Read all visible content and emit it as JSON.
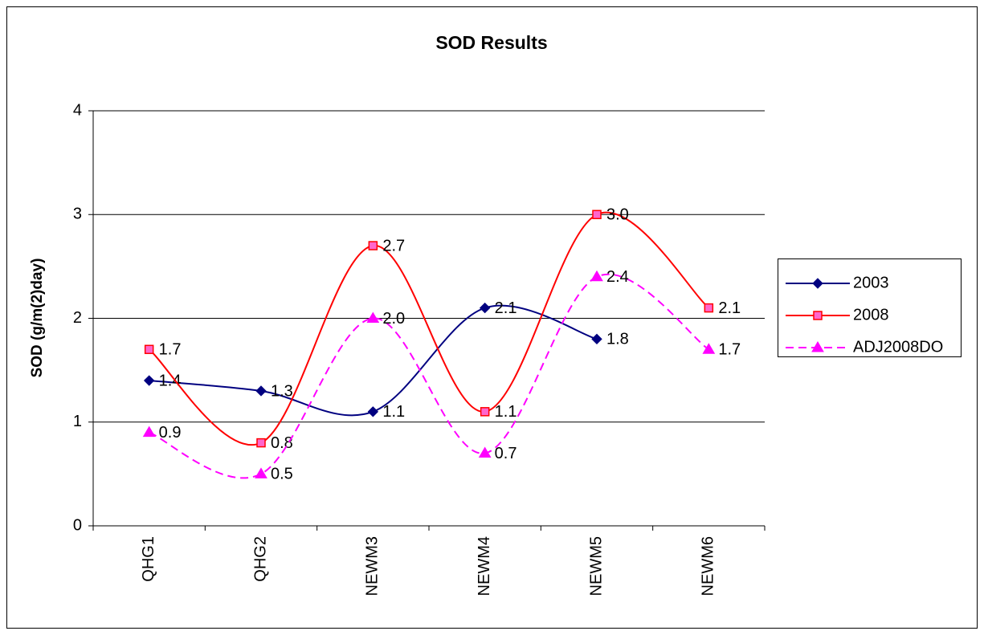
{
  "chart_data": {
    "type": "line",
    "title": "SOD Results",
    "y_label": "SOD (g/m(2)day)",
    "categories": [
      "QHG1",
      "QHG2",
      "NEWM3",
      "NEWM4",
      "NEWM5",
      "NEWM6"
    ],
    "series": [
      {
        "name": "2003",
        "color": "#000080",
        "marker": "diamond",
        "marker_fill": "#000080",
        "dashed": false,
        "values": [
          1.4,
          1.3,
          1.1,
          2.1,
          1.8,
          null
        ],
        "value_labels": [
          "1.4",
          "1.3",
          "1.1",
          "2.1",
          "1.8",
          null
        ]
      },
      {
        "name": "2008",
        "color": "#ff0000",
        "marker": "square",
        "marker_fill": "#ff66cc",
        "dashed": false,
        "values": [
          1.7,
          0.8,
          2.7,
          1.1,
          3.0,
          2.1
        ],
        "value_labels": [
          "1.7",
          "0.8",
          "2.7",
          "1.1",
          "3.0",
          "2.1"
        ]
      },
      {
        "name": "ADJ2008DO",
        "color": "#ff00ff",
        "marker": "triangle",
        "marker_fill": "#ff00ff",
        "dashed": true,
        "values": [
          0.9,
          0.5,
          2.0,
          0.7,
          2.4,
          1.7
        ],
        "value_labels": [
          "0.9",
          "0.5",
          "2.0",
          "0.7",
          "2.4",
          "1.7"
        ]
      }
    ],
    "ylim": [
      0,
      4
    ],
    "yticks": [
      0,
      1,
      2,
      3,
      4
    ],
    "grid": true,
    "smooth": true,
    "legend": "right"
  }
}
